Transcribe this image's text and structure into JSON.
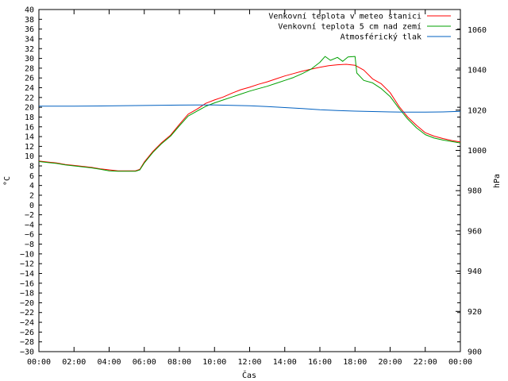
{
  "chart_data": {
    "type": "line",
    "xlabel": "Čas",
    "ylabel_left": "°C",
    "ylabel_right": "hPa",
    "x_ticks": [
      "00:00",
      "02:00",
      "04:00",
      "06:00",
      "08:00",
      "10:00",
      "12:00",
      "14:00",
      "16:00",
      "18:00",
      "20:00",
      "22:00",
      "00:00"
    ],
    "xlim_hours": [
      0,
      24
    ],
    "ylim_left": [
      -30,
      40
    ],
    "ylim_right": [
      900,
      1070
    ],
    "left_ticks": [
      40,
      38,
      36,
      34,
      32,
      30,
      28,
      26,
      24,
      22,
      20,
      18,
      16,
      14,
      12,
      10,
      8,
      6,
      4,
      2,
      0,
      -2,
      -4,
      -6,
      -8,
      -10,
      -12,
      -14,
      -16,
      -18,
      -20,
      -22,
      -24,
      -26,
      -28,
      -30
    ],
    "left_tick_labels": [
      "40",
      "38",
      "36",
      "34",
      "32",
      "30",
      "28",
      "26",
      "24",
      "22",
      "20",
      "18",
      "16",
      "14",
      "12",
      "10",
      "8",
      "6",
      "4",
      "2",
      "0",
      "−2",
      "−4",
      "−6",
      "−8",
      "−10",
      "−12",
      "−14",
      "−16",
      "−18",
      "−20",
      "−22",
      "−24",
      "−26",
      "−28",
      "−30"
    ],
    "right_ticks": [
      1060,
      1040,
      1020,
      1000,
      980,
      960,
      940,
      920,
      900
    ],
    "right_tick_labels": [
      "1060",
      "1040",
      "1020",
      "1000",
      "980",
      "960",
      "940",
      "920",
      "900"
    ],
    "grid": false,
    "legend_position": "top-right",
    "series": [
      {
        "name": "Venkovní teplota v meteo stanici",
        "color": "#ff0000",
        "axis": "left",
        "x": [
          0,
          0.5,
          1,
          1.5,
          2,
          2.5,
          3,
          3.5,
          4,
          4.5,
          5,
          5.5,
          5.75,
          6,
          6.5,
          7,
          7.5,
          8,
          8.5,
          9,
          9.5,
          10,
          10.5,
          11,
          11.5,
          12,
          12.5,
          13,
          13.5,
          14,
          14.5,
          15,
          15.5,
          16,
          16.5,
          17,
          17.5,
          18,
          18.5,
          19,
          19.5,
          20,
          20.5,
          21,
          21.5,
          22,
          22.5,
          23,
          23.5,
          24
        ],
        "y": [
          9.0,
          8.8,
          8.6,
          8.3,
          8.1,
          7.9,
          7.7,
          7.4,
          7.2,
          7.0,
          7.0,
          7.0,
          7.3,
          8.8,
          11.0,
          12.8,
          14.3,
          16.5,
          18.6,
          19.6,
          20.8,
          21.5,
          22.1,
          22.9,
          23.6,
          24.1,
          24.7,
          25.2,
          25.8,
          26.4,
          26.9,
          27.4,
          27.8,
          28.2,
          28.5,
          28.7,
          28.8,
          28.6,
          27.6,
          25.8,
          24.8,
          23.0,
          20.2,
          18.0,
          16.3,
          14.8,
          14.1,
          13.6,
          13.2,
          12.9
        ]
      },
      {
        "name": "Venkovní teplota 5 cm nad zemí",
        "color": "#00a000",
        "axis": "left",
        "x": [
          0,
          0.5,
          1,
          1.5,
          2,
          2.5,
          3,
          3.5,
          4,
          4.5,
          5,
          5.5,
          5.75,
          6,
          6.5,
          7,
          7.5,
          8,
          8.5,
          9,
          9.5,
          10,
          10.5,
          11,
          11.5,
          12,
          12.5,
          13,
          13.5,
          14,
          14.5,
          15,
          15.5,
          16,
          16.3,
          16.6,
          17,
          17.3,
          17.6,
          18,
          18.1,
          18.5,
          19,
          19.5,
          20,
          20.5,
          21,
          21.5,
          22,
          22.5,
          23,
          23.5,
          24
        ],
        "y": [
          8.9,
          8.7,
          8.5,
          8.2,
          8.0,
          7.8,
          7.6,
          7.3,
          7.0,
          6.9,
          6.9,
          6.9,
          7.2,
          8.6,
          10.8,
          12.6,
          14.1,
          16.2,
          18.2,
          19.2,
          20.2,
          20.9,
          21.5,
          22.1,
          22.7,
          23.3,
          23.8,
          24.3,
          24.9,
          25.5,
          26.1,
          26.9,
          27.8,
          29.2,
          30.4,
          29.6,
          30.2,
          29.4,
          30.3,
          30.4,
          27.0,
          25.5,
          25.0,
          23.8,
          22.2,
          19.8,
          17.6,
          15.8,
          14.4,
          13.7,
          13.3,
          13.0,
          12.7
        ]
      },
      {
        "name": "Atmosférický tlak",
        "color": "#0060c0",
        "axis": "right",
        "x": [
          0,
          2,
          4,
          6,
          8,
          9,
          10,
          11,
          12,
          13,
          14,
          15,
          16,
          17,
          18,
          19,
          20,
          21,
          22,
          23,
          24
        ],
        "y": [
          1022.0,
          1022.0,
          1022.1,
          1022.3,
          1022.5,
          1022.6,
          1022.6,
          1022.4,
          1022.2,
          1021.8,
          1021.3,
          1020.8,
          1020.2,
          1019.8,
          1019.5,
          1019.3,
          1019.1,
          1019.0,
          1019.0,
          1019.1,
          1019.4
        ]
      }
    ]
  }
}
